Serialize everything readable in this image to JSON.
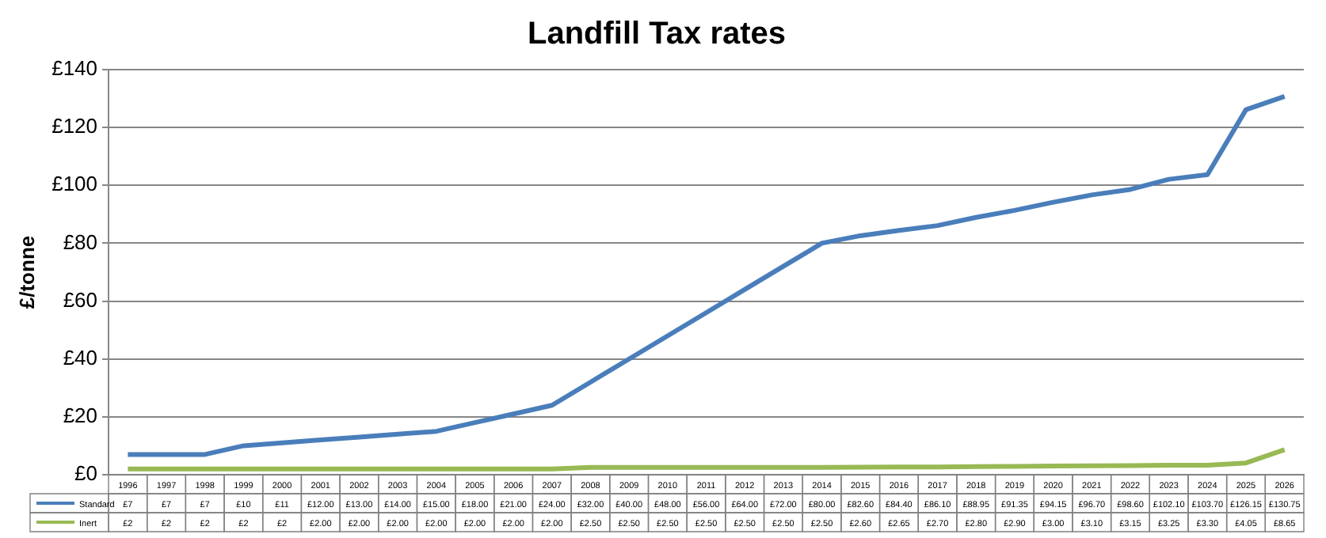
{
  "chart_data": {
    "type": "line",
    "title": "Landfill Tax rates",
    "ylabel": "£/tonne",
    "categories": [
      "1996",
      "1997",
      "1998",
      "1999",
      "2000",
      "2001",
      "2002",
      "2003",
      "2004",
      "2005",
      "2006",
      "2007",
      "2008",
      "2009",
      "2010",
      "2011",
      "2012",
      "2013",
      "2014",
      "2015",
      "2016",
      "2017",
      "2018",
      "2019",
      "2020",
      "2021",
      "2022",
      "2023",
      "2024",
      "2025",
      "2026"
    ],
    "series": [
      {
        "name": "Standard",
        "color": "#4a7ebb",
        "values": [
          7,
          7,
          7,
          10,
          11,
          12,
          13,
          14,
          15,
          18,
          21,
          24,
          32,
          40,
          48,
          56,
          64,
          72,
          80,
          82.6,
          84.4,
          86.1,
          88.95,
          91.35,
          94.15,
          96.7,
          98.6,
          102.1,
          103.7,
          126.15,
          130.75
        ],
        "value_labels": [
          "£7",
          "£7",
          "£7",
          "£10",
          "£11",
          "£12.00",
          "£13.00",
          "£14.00",
          "£15.00",
          "£18.00",
          "£21.00",
          "£24.00",
          "£32.00",
          "£40.00",
          "£48.00",
          "£56.00",
          "£64.00",
          "£72.00",
          "£80.00",
          "£82.60",
          "£84.40",
          "£86.10",
          "£88.95",
          "£91.35",
          "£94.15",
          "£96.70",
          "£98.60",
          "£102.10",
          "£103.70",
          "£126.15",
          "£130.75"
        ]
      },
      {
        "name": "Inert",
        "color": "#98b954",
        "values": [
          2,
          2,
          2,
          2,
          2,
          2,
          2,
          2,
          2,
          2,
          2,
          2,
          2.5,
          2.5,
          2.5,
          2.5,
          2.5,
          2.5,
          2.5,
          2.6,
          2.65,
          2.7,
          2.8,
          2.9,
          3.0,
          3.1,
          3.15,
          3.25,
          3.3,
          4.05,
          8.65
        ],
        "value_labels": [
          "£2",
          "£2",
          "£2",
          "£2",
          "£2",
          "£2.00",
          "£2.00",
          "£2.00",
          "£2.00",
          "£2.00",
          "£2.00",
          "£2.00",
          "£2.50",
          "£2.50",
          "£2.50",
          "£2.50",
          "£2.50",
          "£2.50",
          "£2.50",
          "£2.60",
          "£2.65",
          "£2.70",
          "£2.80",
          "£2.90",
          "£3.00",
          "£3.10",
          "£3.15",
          "£3.25",
          "£3.30",
          "£4.05",
          "£8.65"
        ]
      }
    ],
    "ylim": [
      0,
      140
    ],
    "yticks": [
      {
        "value": 0,
        "label": "£0"
      },
      {
        "value": 20,
        "label": "£20"
      },
      {
        "value": 40,
        "label": "£40"
      },
      {
        "value": 60,
        "label": "£60"
      },
      {
        "value": 80,
        "label": "£80"
      },
      {
        "value": 100,
        "label": "£100"
      },
      {
        "value": 120,
        "label": "£120"
      },
      {
        "value": 140,
        "label": "£140"
      }
    ],
    "grid": "y",
    "legend": "bottom",
    "marker": "none",
    "line_style": "solid"
  }
}
